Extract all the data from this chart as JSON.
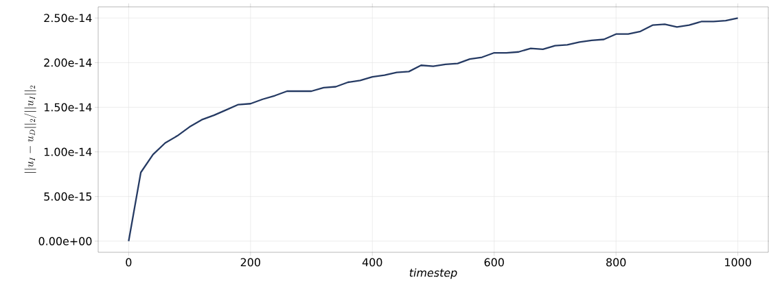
{
  "chart_data": {
    "type": "line",
    "xlabel": "timestep",
    "ylabel": "||u_I - u_D||_2/||u_I||_2",
    "x": [
      0,
      20,
      40,
      60,
      80,
      100,
      120,
      140,
      160,
      180,
      200,
      220,
      240,
      260,
      280,
      300,
      320,
      340,
      360,
      380,
      400,
      420,
      440,
      460,
      480,
      500,
      520,
      540,
      560,
      580,
      600,
      620,
      640,
      660,
      680,
      700,
      720,
      740,
      760,
      780,
      800,
      820,
      840,
      860,
      880,
      900,
      920,
      940,
      960,
      980,
      1000
    ],
    "series": [
      {
        "color": "#253a63",
        "values": [
          0,
          7.7e-15,
          9.7e-15,
          1.1e-14,
          1.18e-14,
          1.28e-14,
          1.36e-14,
          1.41e-14,
          1.47e-14,
          1.53e-14,
          1.54e-14,
          1.59e-14,
          1.63e-14,
          1.68e-14,
          1.68e-14,
          1.68e-14,
          1.72e-14,
          1.73e-14,
          1.78e-14,
          1.8e-14,
          1.84e-14,
          1.86e-14,
          1.89e-14,
          1.9e-14,
          1.97e-14,
          1.96e-14,
          1.98e-14,
          1.99e-14,
          2.04e-14,
          2.06e-14,
          2.11e-14,
          2.11e-14,
          2.12e-14,
          2.16e-14,
          2.15e-14,
          2.19e-14,
          2.2e-14,
          2.23e-14,
          2.25e-14,
          2.26e-14,
          2.32e-14,
          2.32e-14,
          2.35e-14,
          2.42e-14,
          2.43e-14,
          2.4e-14,
          2.42e-14,
          2.46e-14,
          2.46e-14,
          2.47e-14,
          2.5e-14
        ]
      }
    ],
    "xlim": [
      -50,
      1050
    ],
    "ylim": [
      -1.25e-15,
      2.625e-14
    ],
    "xticks": [
      0,
      200,
      400,
      600,
      800,
      1000
    ],
    "yticks": [
      {
        "value": 0,
        "label": "0.00e+00"
      },
      {
        "value": 5e-15,
        "label": "5.00e-15"
      },
      {
        "value": 1e-14,
        "label": "1.00e-14"
      },
      {
        "value": 1.5e-14,
        "label": "1.50e-14"
      },
      {
        "value": 2e-14,
        "label": "2.00e-14"
      },
      {
        "value": 2.5e-14,
        "label": "2.50e-14"
      }
    ],
    "grid": true,
    "marker": "none",
    "line_style": "solid"
  }
}
